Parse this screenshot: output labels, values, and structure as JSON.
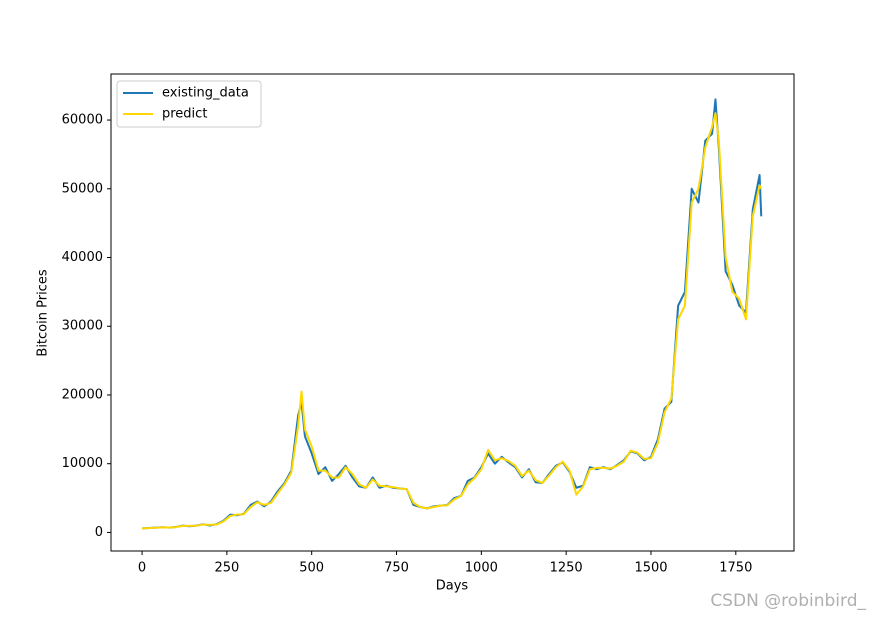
{
  "chart_data": {
    "type": "line",
    "xlabel": "Days",
    "ylabel": "Bitcoin Prices",
    "x": [
      0,
      20,
      40,
      60,
      80,
      100,
      120,
      140,
      160,
      180,
      200,
      220,
      240,
      260,
      280,
      300,
      320,
      340,
      360,
      380,
      400,
      420,
      440,
      460,
      470,
      480,
      500,
      520,
      540,
      560,
      580,
      600,
      620,
      640,
      660,
      680,
      700,
      720,
      740,
      760,
      780,
      800,
      820,
      840,
      860,
      880,
      900,
      920,
      940,
      960,
      980,
      1000,
      1020,
      1040,
      1060,
      1080,
      1100,
      1120,
      1140,
      1160,
      1180,
      1200,
      1220,
      1240,
      1260,
      1280,
      1300,
      1320,
      1340,
      1360,
      1380,
      1400,
      1420,
      1440,
      1460,
      1480,
      1500,
      1520,
      1540,
      1560,
      1580,
      1600,
      1620,
      1640,
      1660,
      1680,
      1690,
      1700,
      1720,
      1740,
      1760,
      1780,
      1800,
      1820,
      1825
    ],
    "series": [
      {
        "name": "existing_data",
        "color": "#1f77b4",
        "values": [
          600,
          650,
          700,
          750,
          700,
          800,
          1000,
          900,
          1000,
          1200,
          1000,
          1200,
          1700,
          2600,
          2500,
          2700,
          4000,
          4500,
          3800,
          4500,
          6000,
          7200,
          9000,
          17000,
          19000,
          14000,
          11500,
          8500,
          9500,
          7500,
          8500,
          9700,
          8000,
          6700,
          6500,
          8000,
          6500,
          6800,
          6500,
          6400,
          6300,
          4000,
          3700,
          3500,
          3800,
          3900,
          4000,
          5000,
          5300,
          7500,
          8000,
          9500,
          11500,
          10000,
          11000,
          10200,
          9500,
          8000,
          9200,
          7300,
          7200,
          8500,
          9700,
          10200,
          8800,
          6500,
          6800,
          9500,
          9200,
          9500,
          9200,
          9800,
          10500,
          11800,
          11500,
          10500,
          11000,
          13500,
          18000,
          19000,
          33000,
          35000,
          50000,
          48000,
          57000,
          58000,
          63000,
          56000,
          38000,
          36000,
          33000,
          32000,
          47000,
          52000,
          46000
        ]
      },
      {
        "name": "predict",
        "color": "#ffd700",
        "values": [
          600,
          630,
          680,
          730,
          720,
          780,
          950,
          950,
          980,
          1150,
          1100,
          1150,
          1600,
          2400,
          2600,
          2650,
          3700,
          4400,
          4000,
          4300,
          5700,
          7000,
          8700,
          15500,
          20500,
          15000,
          12500,
          9000,
          9000,
          8000,
          8000,
          9500,
          8500,
          7000,
          6500,
          7700,
          6800,
          6700,
          6600,
          6400,
          6300,
          4300,
          3700,
          3500,
          3700,
          3900,
          3950,
          4800,
          5300,
          7000,
          7900,
          9200,
          12000,
          10500,
          10800,
          10400,
          9700,
          8200,
          9000,
          7600,
          7200,
          8300,
          9500,
          10300,
          9000,
          5500,
          6700,
          9200,
          9400,
          9400,
          9300,
          9700,
          10300,
          11900,
          11600,
          10700,
          10800,
          13000,
          17500,
          19500,
          31000,
          33000,
          48000,
          50000,
          56000,
          59000,
          61000,
          57000,
          40000,
          35000,
          34000,
          31000,
          46000,
          50500,
          50000
        ]
      }
    ],
    "xlim": [
      -91.5,
      1921.5
    ],
    "xticks": [
      0,
      250,
      500,
      750,
      1000,
      1250,
      1500,
      1750
    ],
    "ylim": [
      -2700,
      66700
    ],
    "yticks": [
      0,
      10000,
      20000,
      30000,
      40000,
      50000,
      60000
    ],
    "legend": "upper left",
    "watermark": "CSDN @robinbird_"
  }
}
